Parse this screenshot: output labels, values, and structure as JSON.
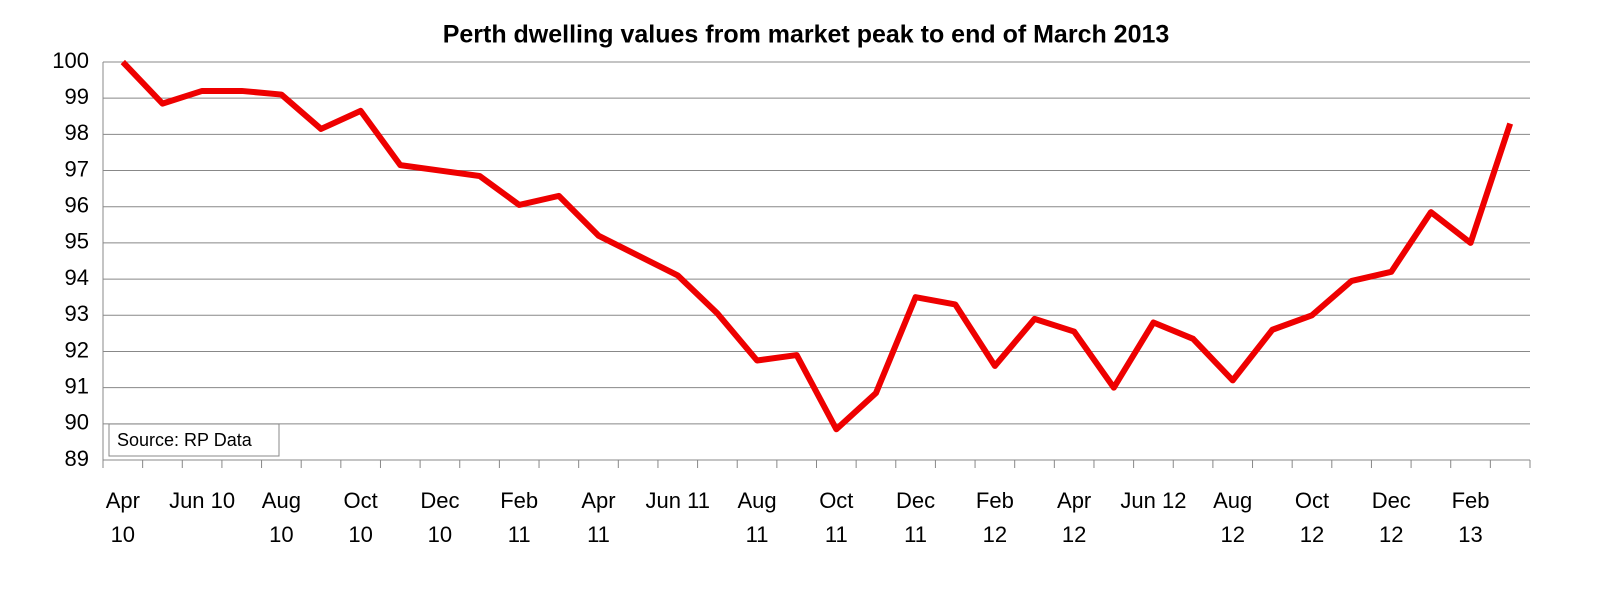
{
  "chart_data": {
    "type": "line",
    "title": "Perth dwelling values from market peak to end of March 2013",
    "annotation": "Source:  RP Data",
    "categories": [
      "Apr\n10",
      null,
      "Jun 10",
      null,
      "Aug\n10",
      null,
      "Oct\n10",
      null,
      "Dec\n10",
      null,
      "Feb\n11",
      null,
      "Apr\n11",
      null,
      "Jun 11",
      null,
      "Aug\n11",
      null,
      "Oct\n11",
      null,
      "Dec\n11",
      null,
      "Feb\n12",
      null,
      "Apr\n12",
      null,
      "Jun 12",
      null,
      "Aug\n12",
      null,
      "Oct\n12",
      null,
      "Dec\n12",
      null,
      "Feb\n13",
      null
    ],
    "values": [
      100,
      98.85,
      99.2,
      99.2,
      99.1,
      98.15,
      98.65,
      97.15,
      97.0,
      96.85,
      96.05,
      96.3,
      95.2,
      94.65,
      94.1,
      93.05,
      91.75,
      91.9,
      89.85,
      90.85,
      93.5,
      93.3,
      91.6,
      92.9,
      92.55,
      91.0,
      92.8,
      92.35,
      91.2,
      92.6,
      93.0,
      93.95,
      94.2,
      95.85,
      95.0,
      98.3
    ],
    "color": "#ee0000",
    "ylim": [
      89,
      100
    ],
    "yticks": [
      89,
      90,
      91,
      92,
      93,
      94,
      95,
      96,
      97,
      98,
      99,
      100
    ],
    "grid": true
  }
}
